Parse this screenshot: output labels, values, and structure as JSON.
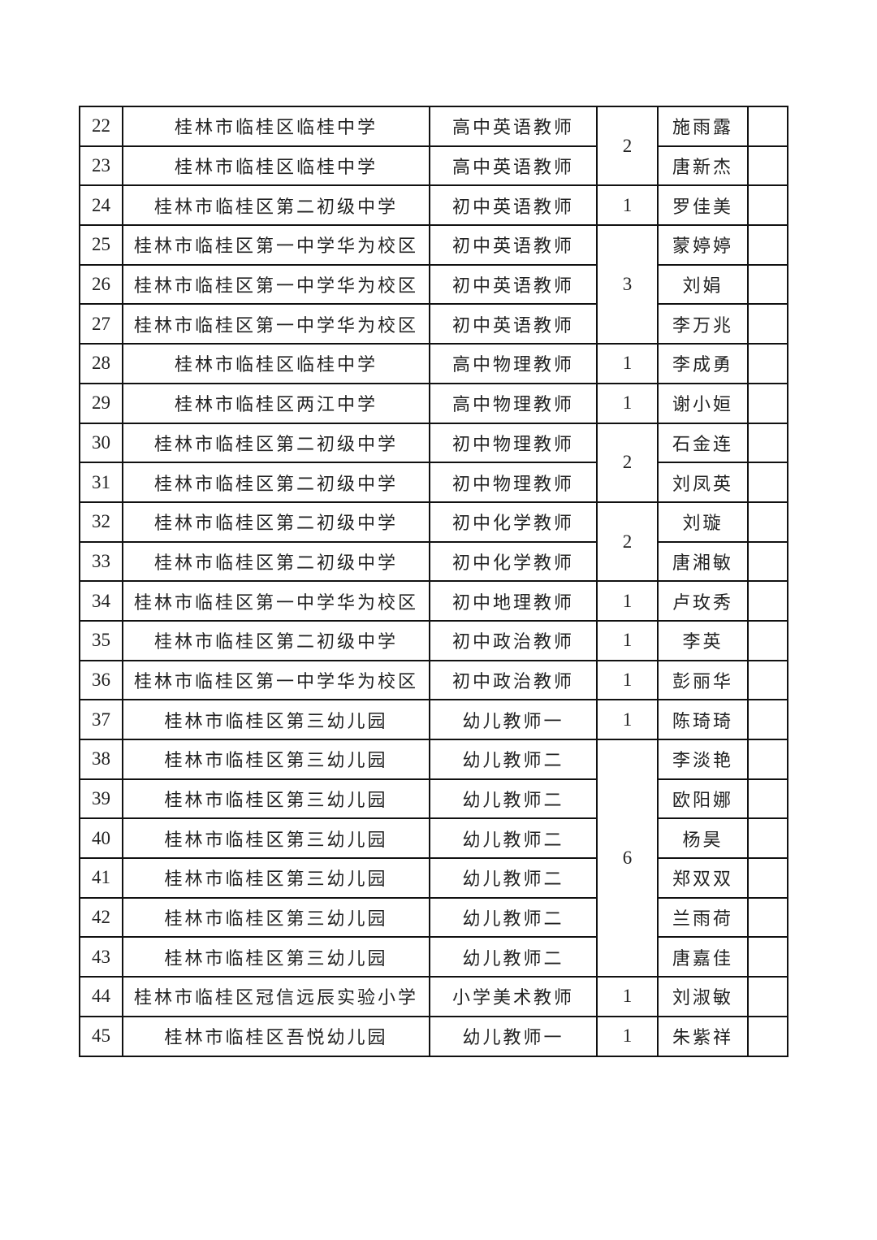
{
  "rows": [
    {
      "no": "22",
      "school": "桂林市临桂区临桂中学",
      "position": "高中英语教师",
      "name": "施雨露"
    },
    {
      "no": "23",
      "school": "桂林市临桂区临桂中学",
      "position": "高中英语教师",
      "name": "唐新杰"
    },
    {
      "no": "24",
      "school": "桂林市临桂区第二初级中学",
      "position": "初中英语教师",
      "name": "罗佳美"
    },
    {
      "no": "25",
      "school": "桂林市临桂区第一中学华为校区",
      "position": "初中英语教师",
      "name": "蒙婷婷"
    },
    {
      "no": "26",
      "school": "桂林市临桂区第一中学华为校区",
      "position": "初中英语教师",
      "name": "刘娟"
    },
    {
      "no": "27",
      "school": "桂林市临桂区第一中学华为校区",
      "position": "初中英语教师",
      "name": "李万兆"
    },
    {
      "no": "28",
      "school": "桂林市临桂区临桂中学",
      "position": "高中物理教师",
      "name": "李成勇"
    },
    {
      "no": "29",
      "school": "桂林市临桂区两江中学",
      "position": "高中物理教师",
      "name": "谢小姮"
    },
    {
      "no": "30",
      "school": "桂林市临桂区第二初级中学",
      "position": "初中物理教师",
      "name": "石金连"
    },
    {
      "no": "31",
      "school": "桂林市临桂区第二初级中学",
      "position": "初中物理教师",
      "name": "刘凤英"
    },
    {
      "no": "32",
      "school": "桂林市临桂区第二初级中学",
      "position": "初中化学教师",
      "name": "刘璇"
    },
    {
      "no": "33",
      "school": "桂林市临桂区第二初级中学",
      "position": "初中化学教师",
      "name": "唐湘敏"
    },
    {
      "no": "34",
      "school": "桂林市临桂区第一中学华为校区",
      "position": "初中地理教师",
      "name": "卢玫秀"
    },
    {
      "no": "35",
      "school": "桂林市临桂区第二初级中学",
      "position": "初中政治教师",
      "name": "李英"
    },
    {
      "no": "36",
      "school": "桂林市临桂区第一中学华为校区",
      "position": "初中政治教师",
      "name": "彭丽华"
    },
    {
      "no": "37",
      "school": "桂林市临桂区第三幼儿园",
      "position": "幼儿教师一",
      "name": "陈琦琦"
    },
    {
      "no": "38",
      "school": "桂林市临桂区第三幼儿园",
      "position": "幼儿教师二",
      "name": "李淡艳"
    },
    {
      "no": "39",
      "school": "桂林市临桂区第三幼儿园",
      "position": "幼儿教师二",
      "name": "欧阳娜"
    },
    {
      "no": "40",
      "school": "桂林市临桂区第三幼儿园",
      "position": "幼儿教师二",
      "name": "杨昊"
    },
    {
      "no": "41",
      "school": "桂林市临桂区第三幼儿园",
      "position": "幼儿教师二",
      "name": "郑双双"
    },
    {
      "no": "42",
      "school": "桂林市临桂区第三幼儿园",
      "position": "幼儿教师二",
      "name": "兰雨荷"
    },
    {
      "no": "43",
      "school": "桂林市临桂区第三幼儿园",
      "position": "幼儿教师二",
      "name": "唐嘉佳"
    },
    {
      "no": "44",
      "school": "桂林市临桂区冠信远辰实验小学",
      "position": "小学美术教师",
      "name": "刘淑敏"
    },
    {
      "no": "45",
      "school": "桂林市临桂区吾悦幼儿园",
      "position": "幼儿教师一",
      "name": "朱紫祥"
    }
  ],
  "quota_groups": [
    {
      "count": "2",
      "rows": 2
    },
    {
      "count": "1",
      "rows": 1
    },
    {
      "count": "3",
      "rows": 3
    },
    {
      "count": "1",
      "rows": 1
    },
    {
      "count": "1",
      "rows": 1
    },
    {
      "count": "2",
      "rows": 2
    },
    {
      "count": "2",
      "rows": 2
    },
    {
      "count": "1",
      "rows": 1
    },
    {
      "count": "1",
      "rows": 1
    },
    {
      "count": "1",
      "rows": 1
    },
    {
      "count": "1",
      "rows": 1
    },
    {
      "count": "6",
      "rows": 6
    },
    {
      "count": "1",
      "rows": 1
    },
    {
      "count": "1",
      "rows": 1
    }
  ]
}
